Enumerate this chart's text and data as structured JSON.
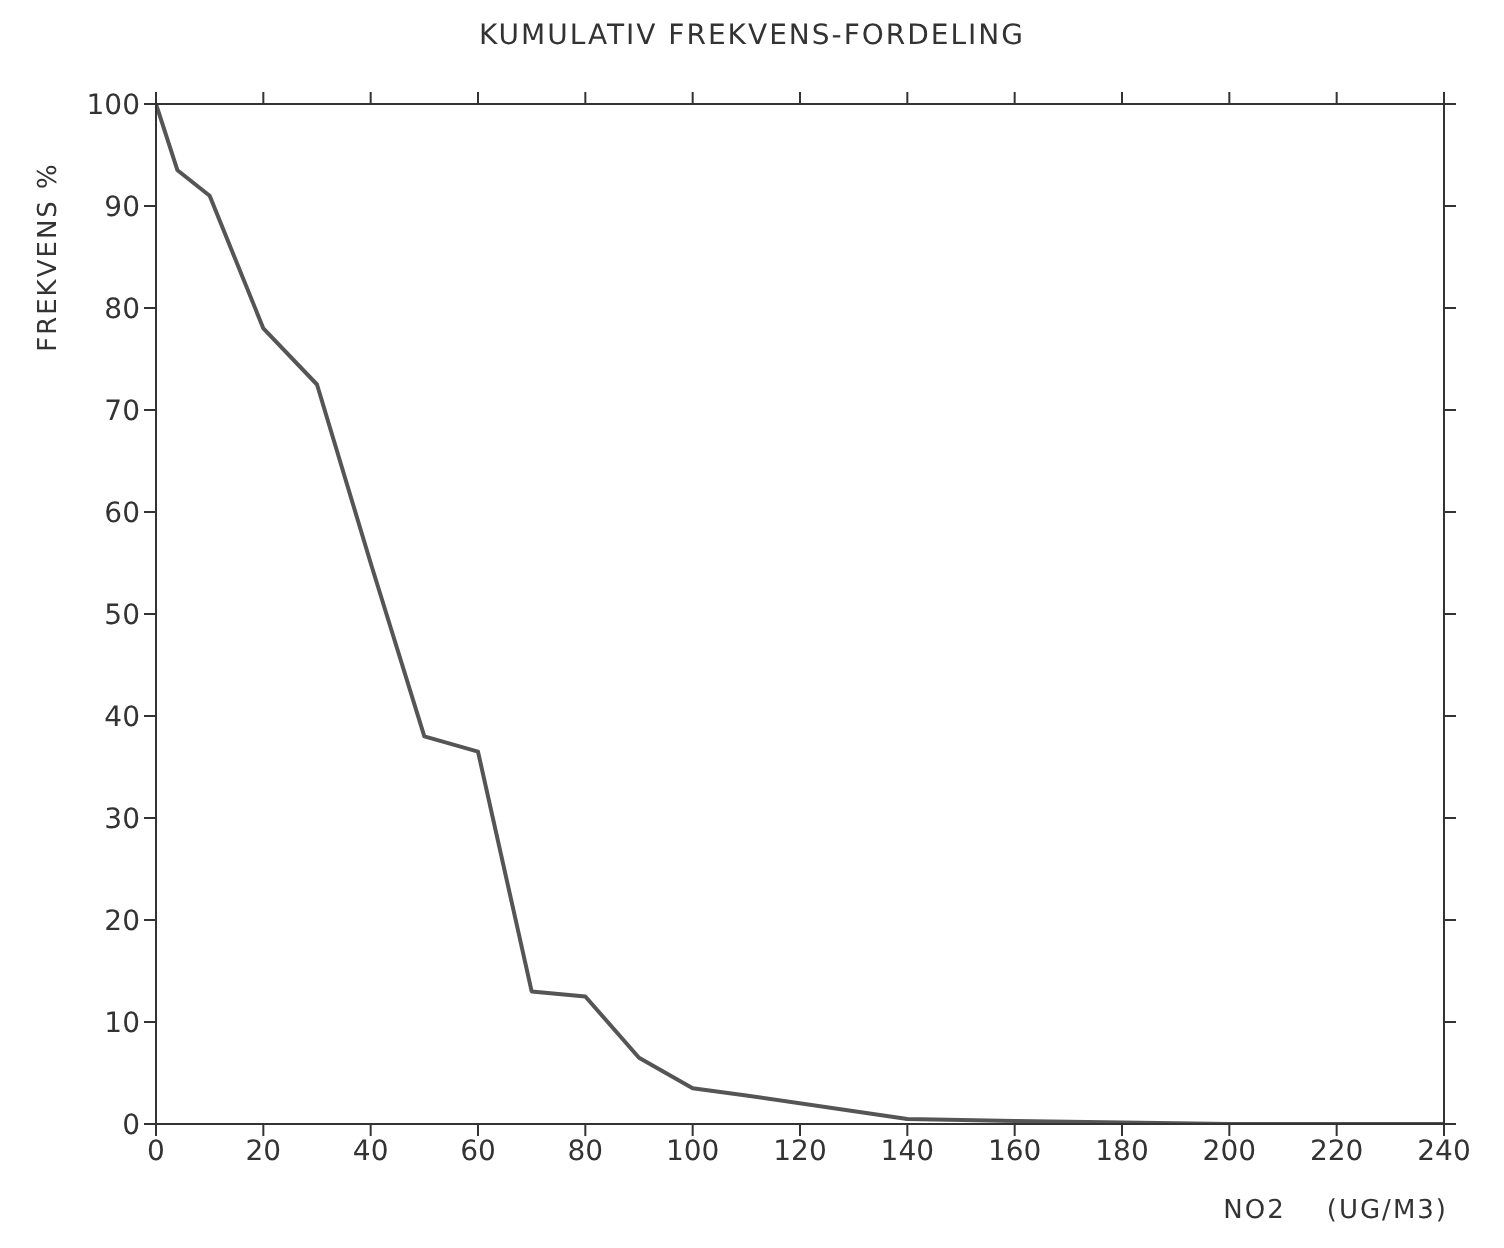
{
  "chart_data": {
    "type": "line",
    "title": "KUMULATIV FREKVENS-FORDELING",
    "xlabel": "NO2    (UG/M3)",
    "ylabel": "FREKVENS %",
    "x": [
      0,
      4,
      10,
      20,
      30,
      40,
      50,
      60,
      70,
      80,
      90,
      100,
      110,
      140,
      160,
      200,
      240
    ],
    "series": [
      {
        "color": "#555555",
        "values": [
          100,
          93.5,
          91,
          78,
          72.5,
          55,
          38,
          36.5,
          13,
          12.5,
          6.5,
          3.5,
          2.8,
          0.5,
          0.3,
          0,
          0
        ]
      }
    ],
    "xlim": [
      0,
      240
    ],
    "xticks": [
      0,
      20,
      40,
      60,
      80,
      100,
      120,
      140,
      160,
      180,
      200,
      220,
      240
    ],
    "ylim": [
      0,
      100
    ],
    "yticks": [
      0,
      10,
      20,
      30,
      40,
      50,
      60,
      70,
      80,
      90,
      100
    ],
    "marker": "none",
    "line_style": "solid"
  }
}
